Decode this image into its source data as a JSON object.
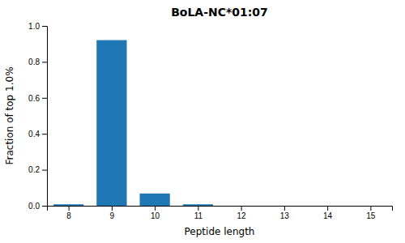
{
  "chart_data": {
    "type": "bar",
    "title": "BoLA-NC*01:07",
    "xlabel": "Peptide length",
    "ylabel": "Fraction of top 1.0%",
    "x": [
      8,
      9,
      10,
      11,
      12,
      13,
      14,
      15
    ],
    "values": [
      0.008,
      0.921,
      0.068,
      0.008,
      0.0,
      0.0,
      0.0,
      0.0
    ],
    "color": "#1f77b4",
    "xlim": [
      7.5,
      15.5
    ],
    "xticks": [
      8,
      9,
      10,
      11,
      12,
      13,
      14,
      15
    ],
    "ylim": [
      0.0,
      1.0
    ],
    "yticks": [
      {
        "value": 0.0,
        "label": "0.0"
      },
      0.2,
      0.4,
      0.6,
      0.8,
      {
        "value": 1.0,
        "label": "1.0"
      }
    ]
  }
}
